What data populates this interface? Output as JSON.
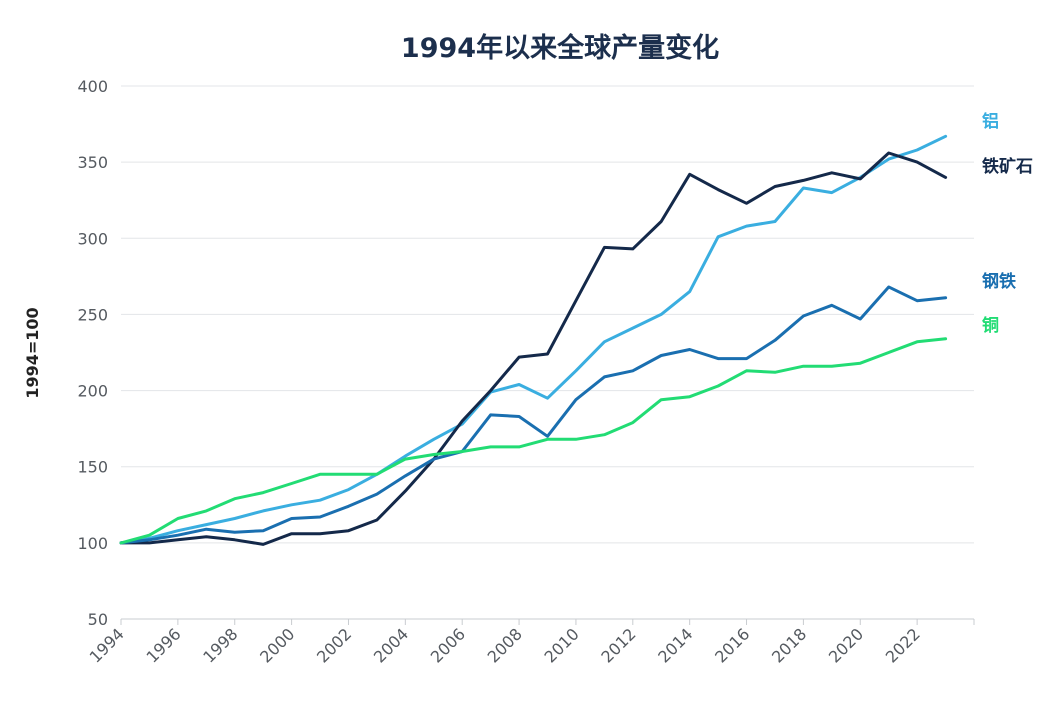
{
  "chart_data": {
    "type": "line",
    "title": "1994年以来全球产量变化",
    "ylabel": "1994=100",
    "ylim": [
      50,
      400
    ],
    "yticks": [
      "50",
      "100",
      "150",
      "200",
      "250",
      "300",
      "350",
      "400"
    ],
    "xlim": [
      1994,
      2024
    ],
    "xticks": [
      "1994",
      "1996",
      "1998",
      "2000",
      "2002",
      "2004",
      "2006",
      "2008",
      "2010",
      "2012",
      "2014",
      "2016",
      "2018",
      "2020",
      "2022"
    ],
    "grid": true,
    "legend": "end-of-line labels (right)",
    "x": [
      1994,
      1995,
      1996,
      1997,
      1998,
      1999,
      2000,
      2001,
      2002,
      2003,
      2004,
      2005,
      2006,
      2007,
      2008,
      2009,
      2010,
      2011,
      2012,
      2013,
      2014,
      2015,
      2016,
      2017,
      2018,
      2019,
      2020,
      2021,
      2022,
      2023
    ],
    "series": [
      {
        "name": "铝",
        "color": "#3aaee0",
        "values": [
          100,
          103,
          108,
          112,
          116,
          121,
          125,
          128,
          135,
          145,
          157,
          168,
          178,
          199,
          204,
          195,
          213,
          232,
          241,
          250,
          265,
          301,
          308,
          311,
          333,
          330,
          340,
          352,
          358,
          367
        ]
      },
      {
        "name": "铁矿石",
        "color": "#14294a",
        "values": [
          100,
          100,
          102,
          104,
          102,
          99,
          106,
          106,
          108,
          115,
          134,
          155,
          180,
          200,
          222,
          224,
          259,
          294,
          293,
          311,
          342,
          332,
          323,
          334,
          338,
          343,
          339,
          356,
          350,
          340
        ]
      },
      {
        "name": "钢铁",
        "color": "#1a6fb0",
        "values": [
          100,
          102,
          105,
          109,
          107,
          108,
          116,
          117,
          124,
          132,
          144,
          155,
          160,
          184,
          183,
          170,
          194,
          209,
          213,
          223,
          227,
          221,
          221,
          233,
          249,
          256,
          247,
          268,
          259,
          261
        ]
      },
      {
        "name": "铜",
        "color": "#22dc74",
        "values": [
          100,
          105,
          116,
          121,
          129,
          133,
          139,
          145,
          145,
          145,
          155,
          158,
          160,
          163,
          163,
          168,
          168,
          171,
          179,
          194,
          196,
          203,
          213,
          212,
          216,
          216,
          218,
          225,
          232,
          234
        ]
      }
    ],
    "series_labels": [
      "铝",
      "铁矿石",
      "钢铁",
      "铜"
    ]
  }
}
